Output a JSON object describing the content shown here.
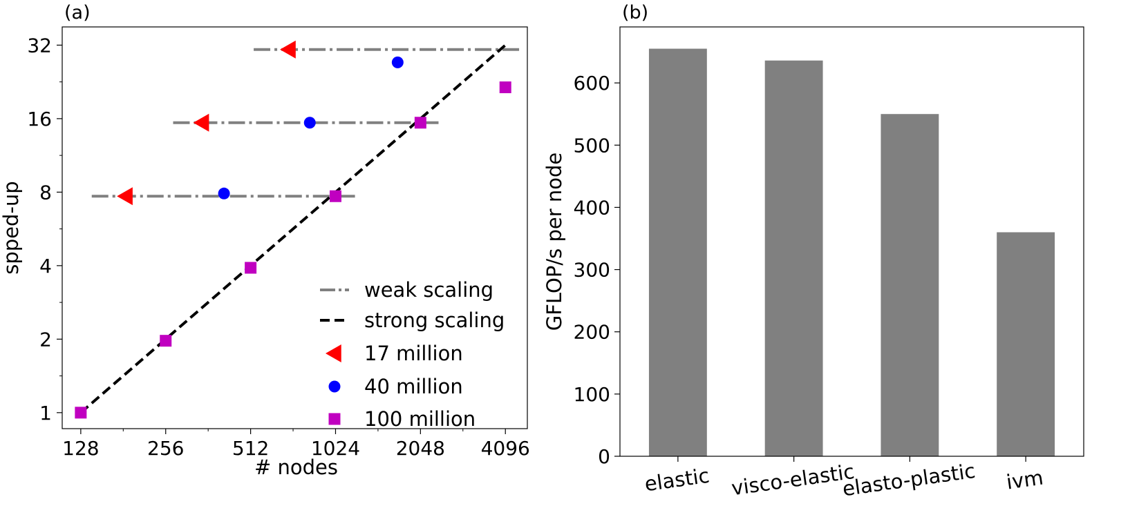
{
  "colors": {
    "weak": "#808080",
    "strong": "#000000",
    "s17": "#ff0000",
    "s40": "#0000ff",
    "s100": "#c000c0",
    "bar": "#808080"
  },
  "chart_data": [
    {
      "panel_label": "(a)",
      "type": "scatter",
      "xlabel": "# nodes",
      "ylabel": "spped-up",
      "xscale": "log2",
      "yscale": "log2",
      "xlim": [
        110,
        4900
      ],
      "ylim": [
        0.86,
        38
      ],
      "xticks": [
        128,
        256,
        512,
        1024,
        2048,
        4096
      ],
      "xtick_labels": [
        "128",
        "256",
        "512",
        "1024",
        "2048",
        "4096"
      ],
      "yticks": [
        1,
        2,
        4,
        8,
        16,
        32
      ],
      "ytick_labels": [
        "1",
        "2",
        "4",
        "8",
        "16",
        "32"
      ],
      "legend_position": "lower right",
      "series": [
        {
          "name": "weak scaling",
          "type": "line",
          "style": "dashdot",
          "segments": [
            {
              "x": [
                140,
                1200
              ],
              "y": [
                7.7,
                7.7
              ]
            },
            {
              "x": [
                272,
                2400
              ],
              "y": [
                15.4,
                15.4
              ]
            },
            {
              "x": [
                525,
                4700
              ],
              "y": [
                30.7,
                30.7
              ]
            }
          ]
        },
        {
          "name": "strong scaling",
          "type": "line",
          "style": "dashed",
          "x": [
            128,
            4096
          ],
          "y": [
            1,
            32
          ]
        },
        {
          "name": "17 million",
          "marker": "triangle-left",
          "x": [
            185,
            345,
            700
          ],
          "y": [
            7.7,
            15.4,
            30.7
          ]
        },
        {
          "name": "40 million",
          "marker": "circle",
          "x": [
            412,
            830,
            1700
          ],
          "y": [
            7.9,
            15.4,
            27.2
          ]
        },
        {
          "name": "100 million",
          "marker": "square",
          "x": [
            128,
            256,
            512,
            1024,
            2048,
            4096
          ],
          "y": [
            1.0,
            1.97,
            3.92,
            7.7,
            15.4,
            21.5
          ]
        }
      ]
    },
    {
      "panel_label": "(b)",
      "type": "bar",
      "xlabel": "",
      "ylabel": "GFLOP/s per node",
      "categories": [
        "elastic",
        "visco-elastic",
        "elasto-plastic",
        "ivm"
      ],
      "values": [
        655,
        636,
        550,
        360
      ],
      "ylim": [
        0,
        690
      ],
      "yticks": [
        0,
        100,
        200,
        300,
        400,
        500,
        600
      ],
      "ytick_labels": [
        "0",
        "100",
        "200",
        "300",
        "400",
        "500",
        "600"
      ]
    }
  ]
}
